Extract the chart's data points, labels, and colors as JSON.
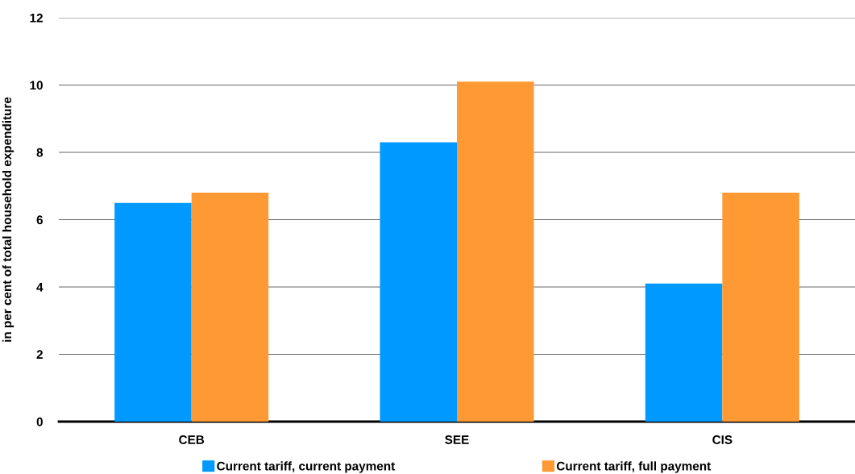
{
  "chart_data": {
    "type": "bar",
    "ylabel": "in per cent of total household expenditure",
    "categories": [
      "CEB",
      "SEE",
      "CIS"
    ],
    "series": [
      {
        "name": "Current tariff, current payment",
        "color": "#0099ff",
        "values": [
          6.5,
          8.3,
          4.1
        ]
      },
      {
        "name": "Current tariff, full payment",
        "color": "#ff9933",
        "values": [
          6.8,
          10.1,
          6.8
        ]
      }
    ],
    "ylim": [
      0,
      12
    ],
    "yticks": [
      0,
      2,
      4,
      6,
      8,
      10,
      12
    ],
    "grid": "y",
    "legend": "bottom"
  }
}
